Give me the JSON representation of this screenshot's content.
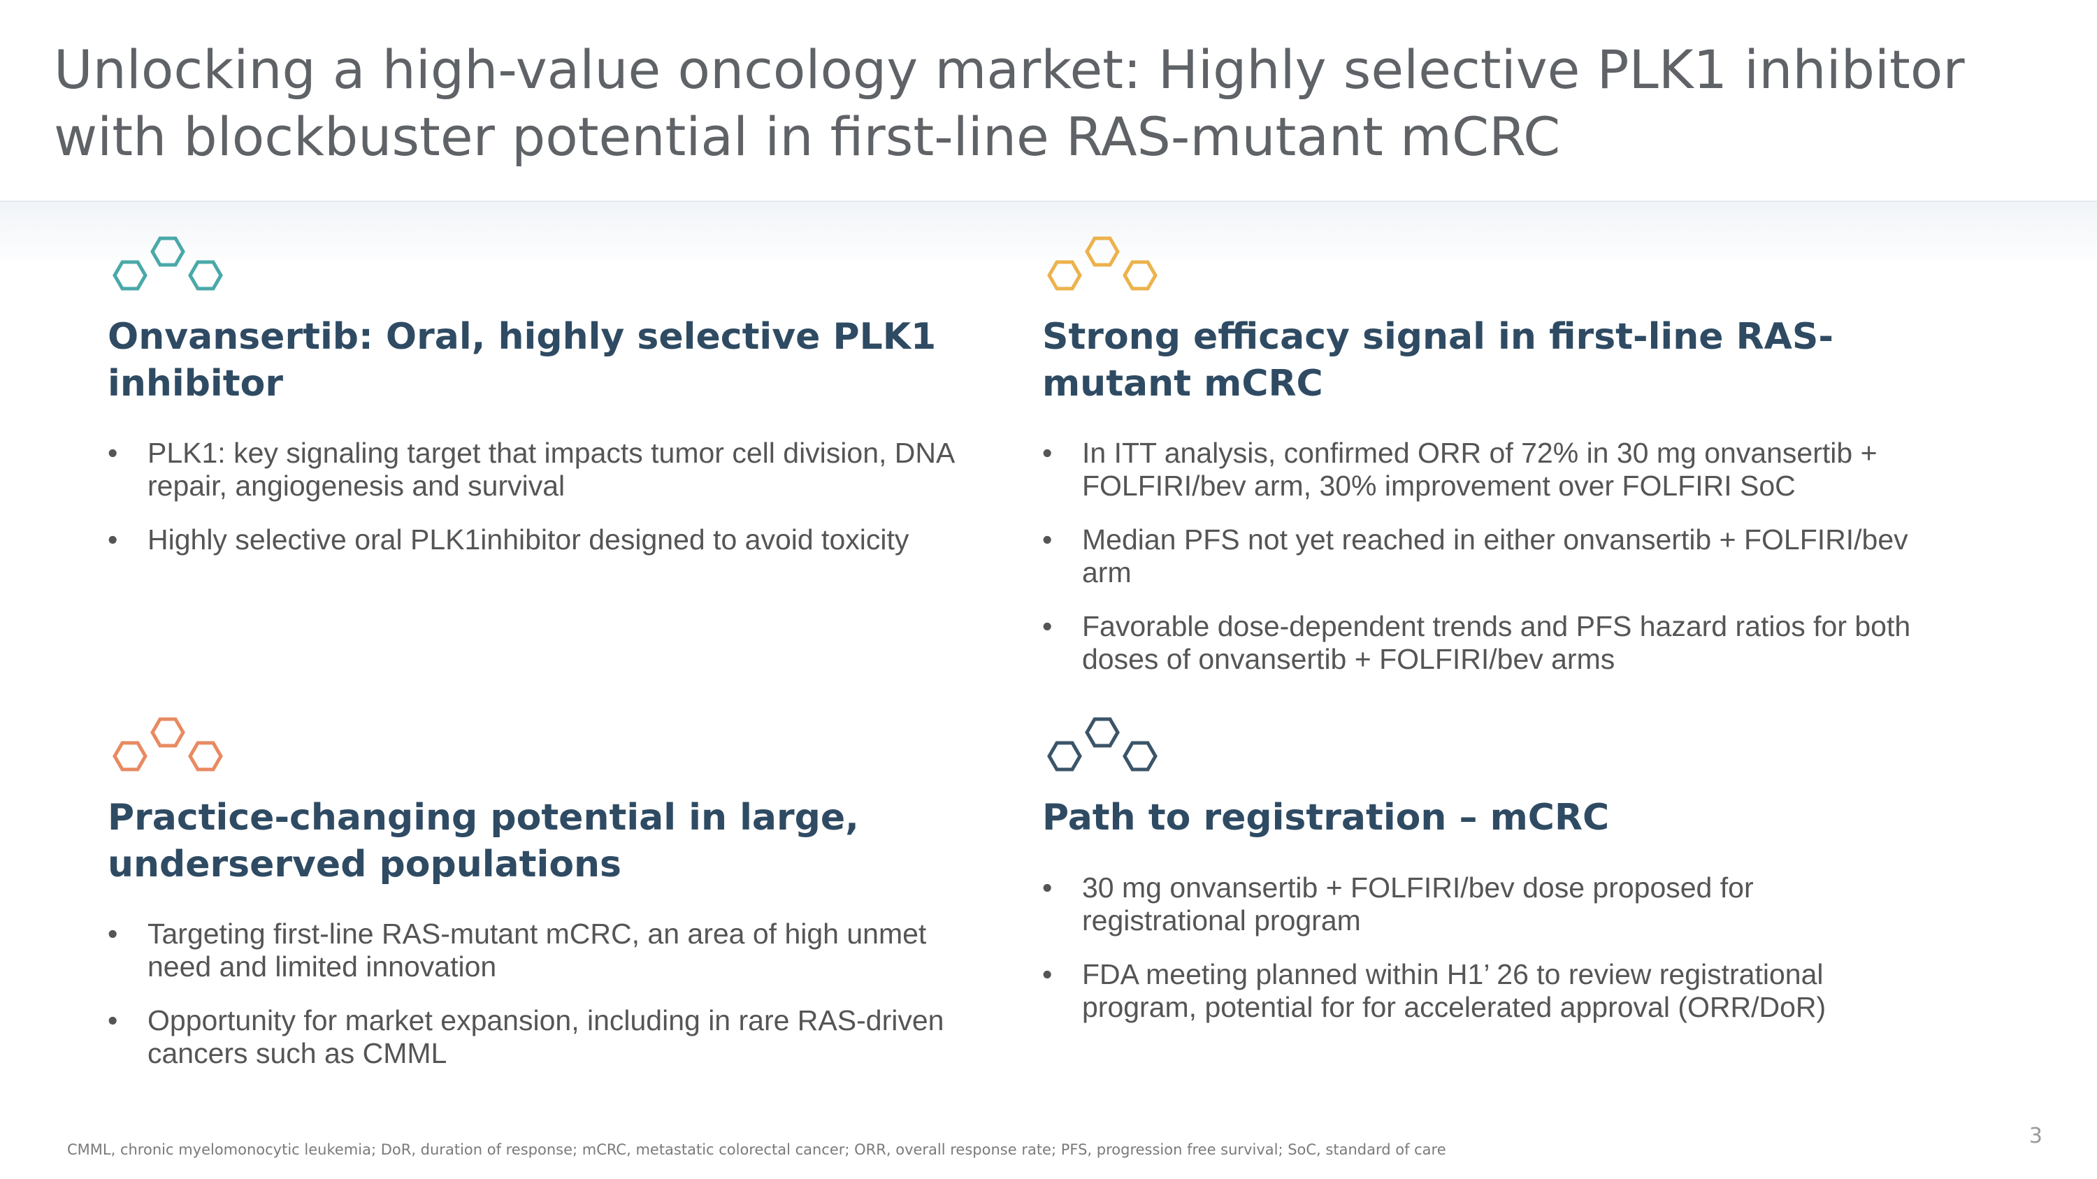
{
  "slide": {
    "title": "Unlocking a high-value oncology market: Highly selective PLK1 inhibitor with blockbuster potential in first-line RAS-mutant mCRC",
    "footnote": "CMML, chronic myelomonocytic leukemia; DoR, duration of response; mCRC, metastatic colorectal cancer; ORR, overall response rate; PFS, progression free survival; SoC, standard of care",
    "page_number": "3"
  },
  "sections": [
    {
      "heading": "Onvansertib: Oral, highly selective PLK1 inhibitor",
      "icon": "hexagon-cluster-icon",
      "icon_color": "#4aa9a8",
      "bullets": [
        "PLK1: key signaling target that impacts tumor cell division, DNA repair, angiogenesis and survival",
        "Highly selective oral PLK1inhibitor designed to avoid toxicity"
      ]
    },
    {
      "heading": "Strong efficacy signal in first-line RAS-mutant mCRC",
      "icon": "hexagon-cluster-icon",
      "icon_color": "#ecb24c",
      "bullets": [
        "In ITT analysis, confirmed ORR of 72% in 30 mg onvansertib + FOLFIRI/bev arm, 30% improvement over FOLFIRI SoC",
        "Median PFS not yet reached in either onvansertib + FOLFIRI/bev arm",
        "Favorable dose-dependent trends and PFS hazard ratios for both doses of onvansertib + FOLFIRI/bev arms"
      ]
    },
    {
      "heading": "Practice-changing potential in large, underserved populations",
      "icon": "hexagon-cluster-icon",
      "icon_color": "#e88a62",
      "bullets": [
        "Targeting first-line RAS-mutant mCRC, an area of high unmet need and limited innovation",
        "Opportunity for market expansion, including in rare RAS-driven cancers such as CMML"
      ]
    },
    {
      "heading": "Path to registration – mCRC",
      "icon": "hexagon-cluster-icon",
      "icon_color": "#3b5468",
      "bullets": [
        "30 mg onvansertib + FOLFIRI/bev dose proposed for registrational program",
        "FDA meeting planned within H1’ 26 to review registrational program, potential for for accelerated approval (ORR/DoR)"
      ]
    }
  ]
}
